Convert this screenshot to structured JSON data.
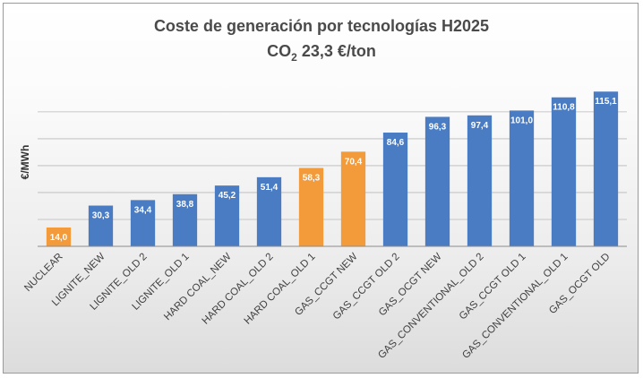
{
  "chart_data": {
    "type": "bar",
    "title": "Coste de generación por tecnologías H2025",
    "subtitle_parts": {
      "base": "CO",
      "sub": "2",
      "rest": " 23,3 €/ton"
    },
    "ylabel": "€/MWh",
    "xlabel": "",
    "ylim": [
      0,
      130
    ],
    "grid": true,
    "legend": "none",
    "categories": [
      "NUCLEAR",
      "LIGNITE_NEW",
      "LIGNITE_OLD 2",
      "LIGNITE_OLD 1",
      "HARD COAL_NEW",
      "HARD COAL_OLD 2",
      "HARD COAL_OLD 1",
      "GAS_CCGT NEW",
      "GAS_CCGT OLD 2",
      "GAS_OCGT NEW",
      "GAS_CONVENTIONAL_OLD 2",
      "GAS_CCGT OLD 1",
      "GAS_CONVENTIONAL_OLD 1",
      "GAS_OCGT OLD"
    ],
    "values": [
      14.0,
      30.3,
      34.4,
      38.8,
      45.2,
      51.4,
      58.3,
      70.4,
      84.6,
      96.3,
      97.4,
      101.0,
      110.8,
      115.1
    ],
    "value_labels": [
      "14,0",
      "30,3",
      "34,4",
      "38,8",
      "45,2",
      "51,4",
      "58,3",
      "70,4",
      "84,6",
      "96,3",
      "97,4",
      "101,0",
      "110,8",
      "115,1"
    ],
    "bar_colors": [
      "#f39a3a",
      "#4a7cc4",
      "#4a7cc4",
      "#4a7cc4",
      "#4a7cc4",
      "#4a7cc4",
      "#f39a3a",
      "#f39a3a",
      "#4a7cc4",
      "#4a7cc4",
      "#4a7cc4",
      "#4a7cc4",
      "#4a7cc4",
      "#4a7cc4"
    ],
    "colors": {
      "blue": "#4a7cc4",
      "orange": "#f39a3a",
      "grid": "#b8b8b8",
      "axis": "#8c8c8c"
    }
  }
}
